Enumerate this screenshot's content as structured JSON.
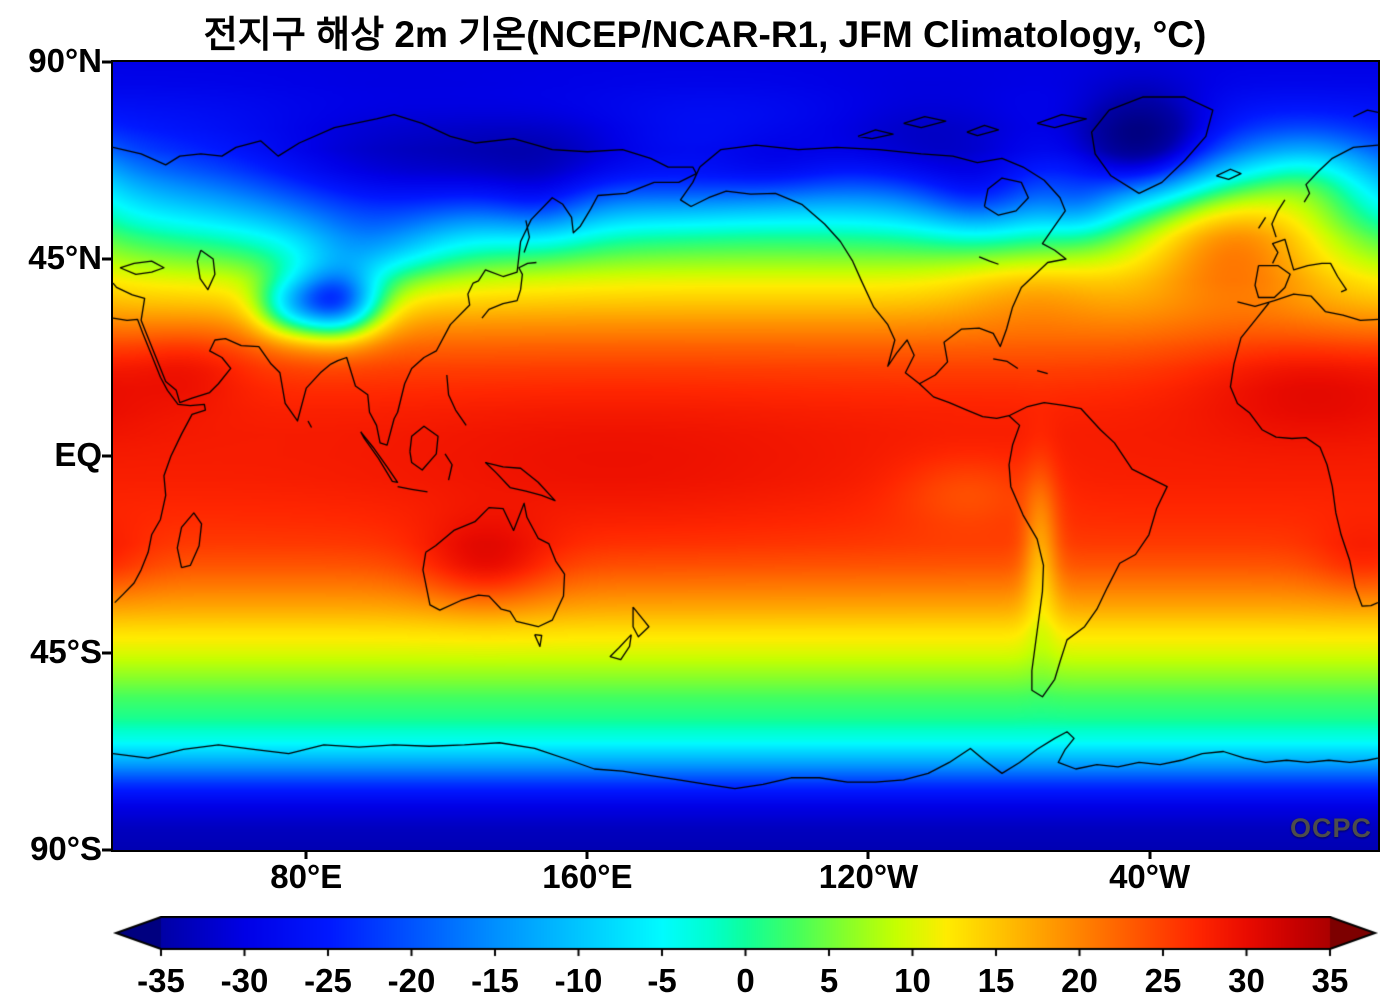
{
  "chart_data": {
    "type": "heatmap",
    "title": "전지구 해상 2m 기온(NCEP/NCAR-R1, JFM Climatology, °C)",
    "dataset": "NCEP/NCAR-R1",
    "season": "JFM Climatology",
    "units": "°C",
    "watermark": "OCPC",
    "projection": {
      "type": "equirectangular",
      "lon_min": 25,
      "lon_max": 385,
      "lat_min": -90,
      "lat_max": 90
    },
    "x_axis": {
      "ticks": [
        {
          "value": 80,
          "label": "80°E"
        },
        {
          "value": 160,
          "label": "160°E"
        },
        {
          "value": 240,
          "label": "120°W"
        },
        {
          "value": 320,
          "label": "40°W"
        }
      ]
    },
    "y_axis": {
      "ticks": [
        {
          "value": 90,
          "label": "90°N"
        },
        {
          "value": 45,
          "label": "45°N"
        },
        {
          "value": 0,
          "label": "EQ"
        },
        {
          "value": -45,
          "label": "45°S"
        },
        {
          "value": -90,
          "label": "90°S"
        }
      ]
    },
    "colorbar": {
      "min": -35,
      "max": 35,
      "tick_step": 5,
      "ticks": [
        -35,
        -30,
        -25,
        -20,
        -15,
        -10,
        -5,
        0,
        5,
        10,
        15,
        20,
        25,
        30,
        35
      ],
      "stops": [
        [
          -40,
          "#000080"
        ],
        [
          -35,
          "#0000a6"
        ],
        [
          -30,
          "#0000e6"
        ],
        [
          -25,
          "#0018ff"
        ],
        [
          -20,
          "#0054ff"
        ],
        [
          -15,
          "#0090ff"
        ],
        [
          -10,
          "#00c6ff"
        ],
        [
          -5,
          "#00fcff"
        ],
        [
          -2,
          "#00ffcc"
        ],
        [
          0,
          "#0fff9b"
        ],
        [
          3,
          "#44ff5e"
        ],
        [
          6,
          "#87ff2a"
        ],
        [
          9,
          "#c6ff00"
        ],
        [
          12,
          "#ffec00"
        ],
        [
          15,
          "#ffc600"
        ],
        [
          18,
          "#ff9e00"
        ],
        [
          21,
          "#ff7600"
        ],
        [
          24,
          "#ff4e00"
        ],
        [
          27,
          "#ff2600"
        ],
        [
          30,
          "#e90b00"
        ],
        [
          33,
          "#c60000"
        ],
        [
          35,
          "#ab0000"
        ],
        [
          40,
          "#7d0000"
        ]
      ]
    },
    "field_model": {
      "zonal_profile": {
        "lat": [
          90,
          85,
          80,
          75,
          70,
          65,
          60,
          55,
          50,
          45,
          40,
          35,
          30,
          25,
          20,
          15,
          10,
          5,
          0,
          -5,
          -10,
          -15,
          -20,
          -25,
          -30,
          -35,
          -40,
          -45,
          -50,
          -55,
          -60,
          -65,
          -70,
          -75,
          -80,
          -85,
          -90
        ],
        "temp": [
          -30,
          -29,
          -27,
          -25,
          -22,
          -17,
          -11,
          -5,
          1,
          6,
          11,
          15,
          19,
          22.5,
          25,
          26.5,
          27.5,
          28,
          28,
          27.8,
          27.2,
          26.5,
          25.5,
          23.5,
          20.5,
          17,
          13,
          10,
          6.5,
          3,
          0.5,
          -4,
          -13,
          -23,
          -30,
          -33,
          -34
        ]
      },
      "anomalies": [
        {
          "name": "tibet-plateau-cold",
          "lat": 35,
          "lon": 88,
          "amp": -34,
          "slat": 5.5,
          "slon": 9
        },
        {
          "name": "himalaya-west-cold",
          "lat": 34,
          "lon": 74,
          "amp": -12,
          "slat": 5,
          "slon": 7
        },
        {
          "name": "siberia-cold",
          "lat": 61,
          "lon": 104,
          "amp": -14,
          "slat": 11,
          "slon": 32
        },
        {
          "name": "mongolia-cold",
          "lat": 47,
          "lon": 97,
          "amp": -9,
          "slat": 6,
          "slon": 14
        },
        {
          "name": "ne-siberia-cold",
          "lat": 66,
          "lon": 152,
          "amp": -9,
          "slat": 8,
          "slon": 22
        },
        {
          "name": "okhotsk-sea-cold",
          "lat": 56,
          "lon": 147,
          "amp": -5,
          "slat": 6,
          "slon": 10
        },
        {
          "name": "bering-cold",
          "lat": 62,
          "lon": 188,
          "amp": -5,
          "slat": 6,
          "slon": 14
        },
        {
          "name": "alaska-cold",
          "lat": 65,
          "lon": 212,
          "amp": -7,
          "slat": 6,
          "slon": 14
        },
        {
          "name": "arctic-canada-cold",
          "lat": 68,
          "lon": 258,
          "amp": -10,
          "slat": 9,
          "slon": 26
        },
        {
          "name": "hudson-bay-cold",
          "lat": 58,
          "lon": 272,
          "amp": -8,
          "slat": 6,
          "slon": 12
        },
        {
          "name": "labrador-cold",
          "lat": 57,
          "lon": 300,
          "amp": -6,
          "slat": 5,
          "slon": 8
        },
        {
          "name": "greenland-cold",
          "lat": 71,
          "lon": 318,
          "amp": -17,
          "slat": 8,
          "slon": 13
        },
        {
          "name": "north-atlantic-warm",
          "lat": 52,
          "lon": 344,
          "amp": 18,
          "slat": 11,
          "slon": 20
        },
        {
          "name": "norwegian-sea-warm",
          "lat": 64,
          "lon": 367,
          "amp": 10,
          "slat": 7,
          "slon": 13
        },
        {
          "name": "gulf-stream-warm",
          "lat": 38,
          "lon": 287,
          "amp": 4,
          "slat": 6,
          "slon": 16
        },
        {
          "name": "sahara-warm",
          "lat": 17,
          "lon": 367,
          "amp": 4,
          "slat": 8,
          "slon": 24
        },
        {
          "name": "arabia-warm",
          "lat": 21,
          "lon": 47,
          "amp": 3,
          "slat": 6,
          "slon": 12
        },
        {
          "name": "australia-warm",
          "lat": -25,
          "lon": 131,
          "amp": 6,
          "slat": 7,
          "slon": 13
        },
        {
          "name": "west-pacific-warm-pool",
          "lat": -4,
          "lon": 168,
          "amp": 1.5,
          "slat": 13,
          "slon": 45
        },
        {
          "name": "andes-coast-cold",
          "lat": -22,
          "lon": 289,
          "amp": -8,
          "slat": 13,
          "slon": 3.5
        },
        {
          "name": "peru-upwelling-cold",
          "lat": -8,
          "lon": 268,
          "amp": -3.5,
          "slat": 6,
          "slon": 14
        },
        {
          "name": "kalahari-warm",
          "lat": -24,
          "lon": 381,
          "amp": 3,
          "slat": 6,
          "slon": 10
        }
      ]
    }
  }
}
